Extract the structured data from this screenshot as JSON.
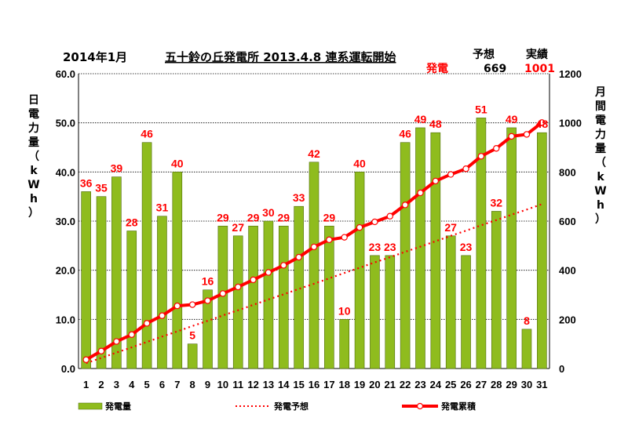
{
  "header": {
    "month": "2014年1月",
    "plant_title": "五十鈴の丘発電所  2013.4.8  連系運転開始",
    "forecast_label": "予想",
    "actual_label": "実績",
    "generation_label": "発電",
    "forecast_value": "669",
    "actual_value": "1001"
  },
  "left_axis_label": [
    "日",
    "電",
    "力",
    "量",
    "（",
    "k",
    "W",
    "h",
    "）"
  ],
  "right_axis_label": [
    "月",
    "間",
    "電",
    "力",
    "量",
    "（",
    "k",
    "W",
    "h",
    "）"
  ],
  "legend": {
    "bar": "発電量",
    "forecast": "発電予想",
    "cumulative": "発電累積"
  },
  "colors": {
    "bar_fill": "#8fbc1e",
    "bar_stroke": "#4f6b0b",
    "line": "#ff0000",
    "grid": "#000000"
  },
  "chart_data": {
    "type": "bar",
    "categories": [
      "1",
      "2",
      "3",
      "4",
      "5",
      "6",
      "7",
      "8",
      "9",
      "10",
      "11",
      "12",
      "13",
      "14",
      "15",
      "16",
      "17",
      "18",
      "19",
      "20",
      "21",
      "22",
      "23",
      "24",
      "25",
      "26",
      "27",
      "28",
      "29",
      "30",
      "31"
    ],
    "y_ticks": [
      "0.0",
      "10.0",
      "20.0",
      "30.0",
      "40.0",
      "50.0",
      "60.0"
    ],
    "y2_ticks": [
      "0",
      "200",
      "400",
      "600",
      "800",
      "1000",
      "1200"
    ],
    "ylim": [
      0,
      60
    ],
    "y2lim": [
      0,
      1200
    ],
    "grid": true,
    "legend_position": "bottom",
    "series": [
      {
        "name": "発電量",
        "type": "bar",
        "axis": "left",
        "values": [
          36,
          35,
          39,
          28,
          46,
          31,
          40,
          5,
          16,
          29,
          27,
          29,
          30,
          29,
          33,
          42,
          29,
          10,
          40,
          23,
          23,
          46,
          49,
          48,
          27,
          23,
          51,
          32,
          49,
          8,
          48
        ]
      },
      {
        "name": "発電予想",
        "type": "line",
        "style": "dotted",
        "axis": "right",
        "values": [
          22,
          43,
          65,
          86,
          108,
          130,
          151,
          173,
          194,
          216,
          237,
          259,
          281,
          302,
          324,
          345,
          367,
          389,
          410,
          432,
          453,
          475,
          496,
          518,
          540,
          561,
          583,
          604,
          626,
          647,
          669
        ]
      },
      {
        "name": "発電累積",
        "type": "line",
        "style": "solid-markers",
        "axis": "right",
        "values": [
          36,
          71,
          110,
          138,
          184,
          215,
          255,
          260,
          276,
          305,
          332,
          361,
          391,
          420,
          453,
          495,
          524,
          534,
          574,
          597,
          620,
          666,
          715,
          763,
          790,
          813,
          864,
          896,
          945,
          953,
          1001
        ]
      }
    ]
  }
}
